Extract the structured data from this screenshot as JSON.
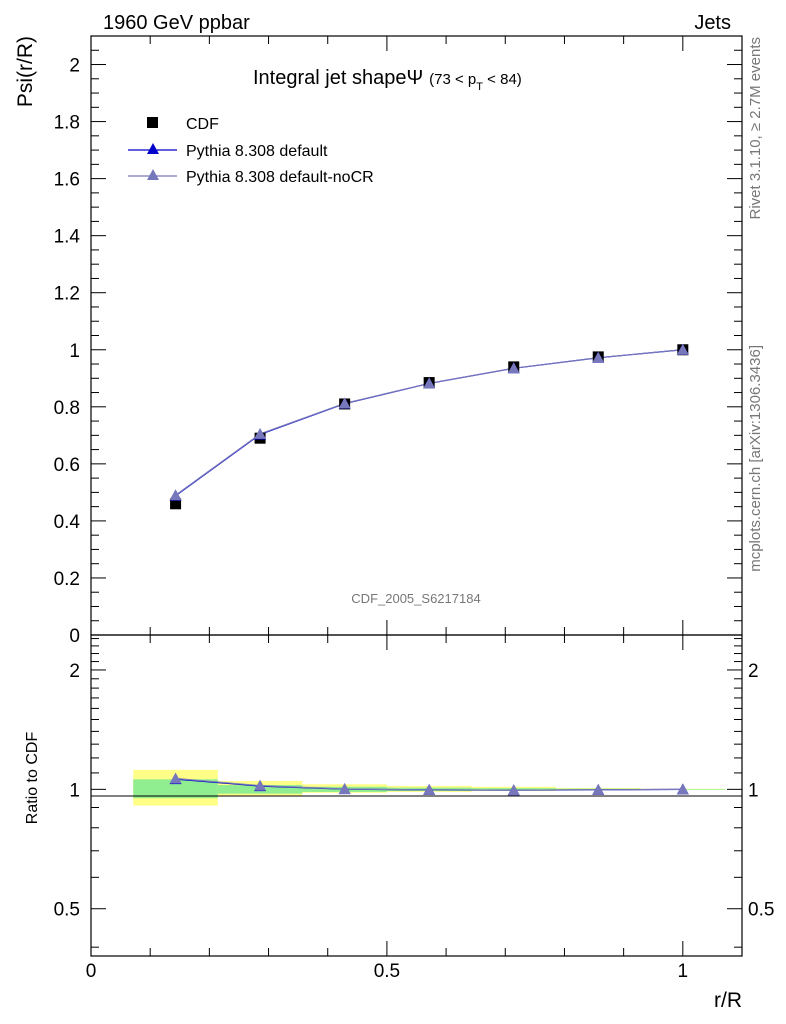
{
  "header": {
    "left_title": "1960 GeV ppbar",
    "right_title": "Jets"
  },
  "side_labels": {
    "rivet": "Rivet 3.1.10, ≥ 2.7M events",
    "mcplots": "mcplots.cern.ch [arXiv:1306.3436]"
  },
  "watermark": "CDF_2005_S6217184",
  "chart_data": [
    {
      "type": "line",
      "title": "Integral jet shapeΨ",
      "subtitle": "(73 < p",
      "subtitle_sub": "T",
      "subtitle_end": " < 84)",
      "ylabel": "Psi(r/R)",
      "xlim": [
        0,
        1.1
      ],
      "ylim": [
        0,
        2.1
      ],
      "yticks": [
        0,
        0.2,
        0.4,
        0.6,
        0.8,
        1,
        1.2,
        1.4,
        1.6,
        1.8,
        2
      ],
      "ytick_labels": [
        "0",
        "0.2",
        "0.4",
        "0.6",
        "0.8",
        "1",
        "1.2",
        "1.4",
        "1.6",
        "1.8",
        "2"
      ],
      "legend_position": "top-left",
      "x": [
        0.1429,
        0.2857,
        0.4286,
        0.5714,
        0.7143,
        0.8571,
        1.0
      ],
      "series": [
        {
          "name": "CDF",
          "marker": "square",
          "color": "#000000",
          "values": [
            0.46,
            0.69,
            0.81,
            0.885,
            0.94,
            0.975,
            1.0
          ]
        },
        {
          "name": "Pythia 8.308 default",
          "marker": "triangle",
          "color": "#0000cc",
          "values": [
            0.488,
            0.703,
            0.811,
            0.882,
            0.935,
            0.972,
            1.0
          ]
        },
        {
          "name": "Pythia 8.308 default-noCR",
          "marker": "triangle",
          "color": "#7777bb",
          "values": [
            0.49,
            0.705,
            0.812,
            0.882,
            0.935,
            0.972,
            1.0
          ]
        }
      ]
    },
    {
      "type": "line",
      "ylabel": "Ratio to CDF",
      "xlabel": "r/R",
      "xlim": [
        0,
        1.1
      ],
      "ylim": [
        0.38,
        2.45
      ],
      "yscale": "log",
      "yticks": [
        0.5,
        1,
        2
      ],
      "ytick_labels": [
        "0.5",
        "1",
        "2"
      ],
      "xticks": [
        0,
        0.5,
        1
      ],
      "xtick_labels": [
        "0",
        "0.5",
        "1"
      ],
      "x": [
        0.1429,
        0.2857,
        0.4286,
        0.5714,
        0.7143,
        0.8571,
        1.0
      ],
      "bin_edges": [
        0.0714,
        0.2143,
        0.3571,
        0.5,
        0.6429,
        0.7857,
        0.9286,
        1.0714
      ],
      "uncertainty_bands": {
        "stat_color": "#90ee90",
        "total_color": "#ffff88",
        "stat": [
          [
            0.95,
            1.06
          ],
          [
            0.975,
            1.025
          ],
          [
            0.985,
            1.015
          ],
          [
            0.99,
            1.01
          ],
          [
            0.993,
            1.007
          ],
          [
            0.996,
            1.004
          ],
          [
            0.998,
            1.002
          ]
        ],
        "total": [
          [
            0.91,
            1.12
          ],
          [
            0.965,
            1.05
          ],
          [
            0.98,
            1.03
          ],
          [
            0.985,
            1.02
          ],
          [
            0.99,
            1.015
          ],
          [
            0.994,
            1.008
          ],
          [
            0.997,
            1.003
          ]
        ]
      },
      "series": [
        {
          "name": "Pythia 8.308 default",
          "color": "#0000cc",
          "values": [
            1.061,
            1.019,
            1.001,
            0.997,
            0.995,
            0.997,
            1.0
          ]
        },
        {
          "name": "Pythia 8.308 default-noCR",
          "color": "#7777bb",
          "values": [
            1.065,
            1.022,
            1.002,
            0.997,
            0.995,
            0.997,
            1.0
          ]
        }
      ]
    }
  ]
}
